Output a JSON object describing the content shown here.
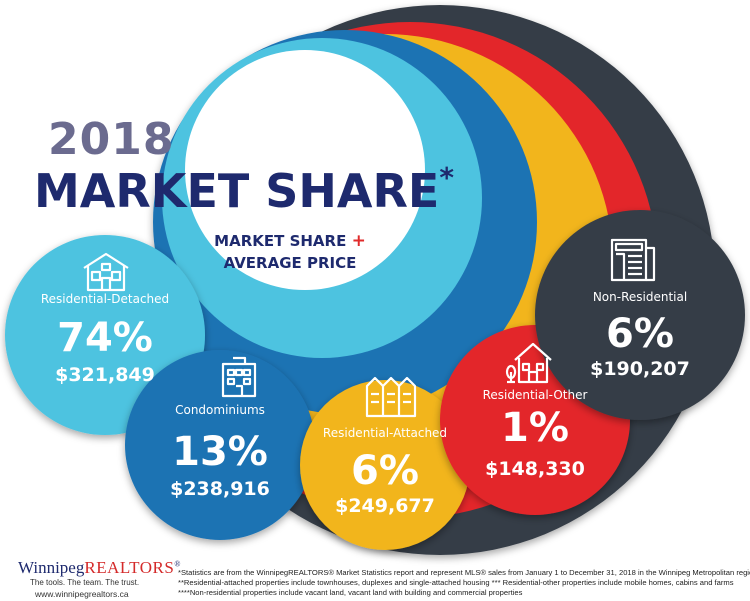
{
  "header": {
    "year": "2018",
    "title": "MARKET SHARE",
    "title_mark": "*",
    "subtitle_line1": "MARKET SHARE",
    "subtitle_plus": "+",
    "subtitle_line2": "AVERAGE PRICE"
  },
  "chart_data": {
    "type": "bubble",
    "categories": [
      "Residential-Detached",
      "Condominiums",
      "Residential-Attached",
      "Residential-Other",
      "Non-Residential"
    ],
    "series": [
      {
        "name": "MARKET SHARE",
        "values": [
          74,
          13,
          6,
          1,
          6
        ],
        "labels": [
          "74%",
          "13%",
          "6%",
          "1%",
          "6%"
        ]
      },
      {
        "name": "AVERAGE PRICE",
        "values": [
          321849,
          238916,
          249677,
          148330,
          190207
        ],
        "labels": [
          "$321,849",
          "$238,916",
          "$249,677",
          "$148,330",
          "$190,207"
        ]
      }
    ],
    "colors": [
      "#4ec3e0",
      "#1f73b3",
      "#f2b51c",
      "#e3262b",
      "#363e47"
    ],
    "icons": [
      "house-icon",
      "condo-building-icon",
      "townhouse-icon",
      "cottage-icon",
      "commercial-building-icon"
    ]
  },
  "footer": {
    "logo_main": "Winnipeg",
    "logo_accent": "REALTORS",
    "logo_mark": "®",
    "tagline": "The tools. The team. The trust.",
    "url": "www.winnipegrealtors.ca",
    "notes": [
      "*Statistics are from the WinnipegREALTORS® Market Statistics report and represent MLS® sales from January 1 to December 31, 2018 in the Winnipeg Metropolitan region",
      "**Residential-attached properties include townhouses, duplexes and single-attached housing *** Residential-other properties include mobile homes, cabins and farms",
      "****Non-residential properties include vacant land, vacant land with building and commercial properties"
    ]
  }
}
